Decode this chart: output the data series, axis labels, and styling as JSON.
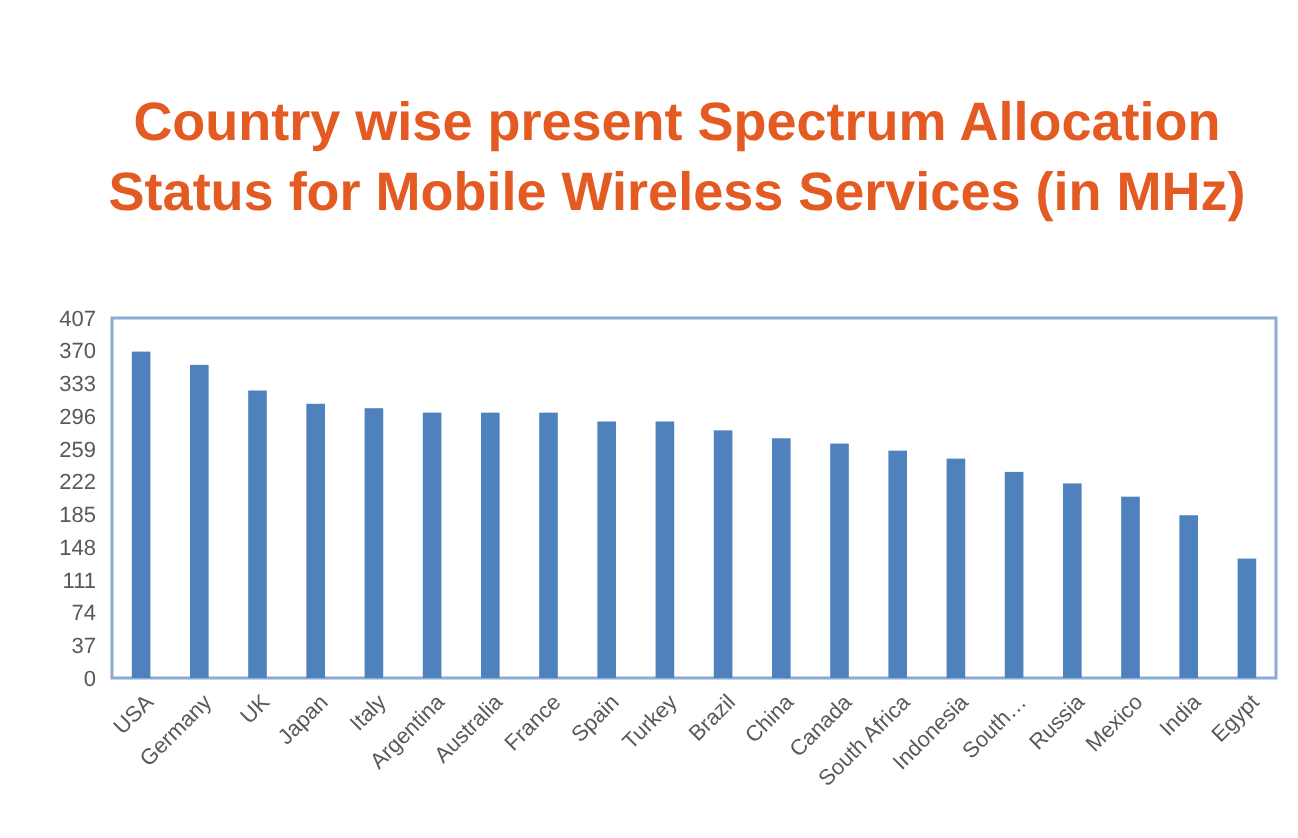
{
  "chart_data": {
    "type": "bar",
    "title": "Country wise present Spectrum Allocation\nStatus for Mobile Wireless Services (in MHz)",
    "categories": [
      "USA",
      "Germany",
      "UK",
      "Japan",
      "Italy",
      "Argentina",
      "Australia",
      "France",
      "Spain",
      "Turkey",
      "Brazil",
      "China",
      "Canada",
      "South Africa",
      "Indonesia",
      "South…",
      "Russia",
      "Mexico",
      "India",
      "Egypt"
    ],
    "values": [
      369,
      354,
      325,
      310,
      305,
      300,
      300,
      300,
      290,
      290,
      280,
      271,
      265,
      257,
      248,
      233,
      220,
      205,
      184,
      135
    ],
    "color": "#4f81bd",
    "ylim": [
      0,
      407
    ],
    "yticks": [
      0,
      37,
      74,
      111,
      148,
      185,
      222,
      259,
      296,
      333,
      370,
      407
    ],
    "grid": false
  }
}
